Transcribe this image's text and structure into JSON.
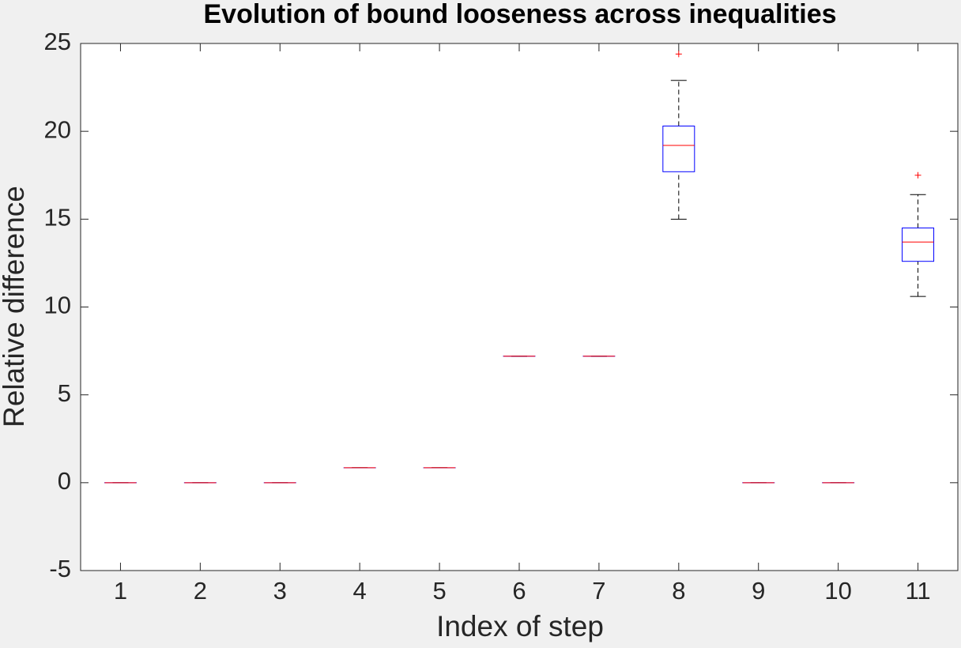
{
  "chart_data": {
    "type": "box",
    "title": "Evolution of bound looseness across inequalities",
    "x_label": "Index of step",
    "y_label": "Relative difference",
    "x": [
      1,
      2,
      3,
      4,
      5,
      6,
      7,
      8,
      9,
      10,
      11
    ],
    "boxes": [
      {
        "min": 0,
        "q1": 0,
        "median": 0,
        "q3": 0,
        "max": 0,
        "outliers": []
      },
      {
        "min": 0,
        "q1": 0,
        "median": 0,
        "q3": 0,
        "max": 0,
        "outliers": []
      },
      {
        "min": 0,
        "q1": 0,
        "median": 0,
        "q3": 0,
        "max": 0,
        "outliers": []
      },
      {
        "min": 0.85,
        "q1": 0.85,
        "median": 0.85,
        "q3": 0.85,
        "max": 0.85,
        "outliers": []
      },
      {
        "min": 0.85,
        "q1": 0.85,
        "median": 0.85,
        "q3": 0.85,
        "max": 0.85,
        "outliers": []
      },
      {
        "min": 7.2,
        "q1": 7.2,
        "median": 7.2,
        "q3": 7.2,
        "max": 7.2,
        "outliers": []
      },
      {
        "min": 7.2,
        "q1": 7.2,
        "median": 7.2,
        "q3": 7.2,
        "max": 7.2,
        "outliers": []
      },
      {
        "min": 15.0,
        "q1": 17.7,
        "median": 19.2,
        "q3": 20.3,
        "max": 22.9,
        "outliers": [
          24.4
        ]
      },
      {
        "min": 0,
        "q1": 0,
        "median": 0,
        "q3": 0,
        "max": 0,
        "outliers": []
      },
      {
        "min": 0,
        "q1": 0,
        "median": 0,
        "q3": 0,
        "max": 0,
        "outliers": []
      },
      {
        "min": 10.6,
        "q1": 12.6,
        "median": 13.7,
        "q3": 14.5,
        "max": 16.4,
        "outliers": [
          17.5
        ]
      }
    ],
    "box_color": "#0000ff",
    "median_color": "#ff0000",
    "whisker_color": "#000000",
    "outlier_color": "#ff0000",
    "xlim": [
      0.5,
      11.5
    ],
    "xticks": [
      1,
      2,
      3,
      4,
      5,
      6,
      7,
      8,
      9,
      10,
      11
    ],
    "ylim": [
      -5,
      25
    ],
    "yticks": [
      -5,
      0,
      5,
      10,
      15,
      20,
      25
    ]
  }
}
